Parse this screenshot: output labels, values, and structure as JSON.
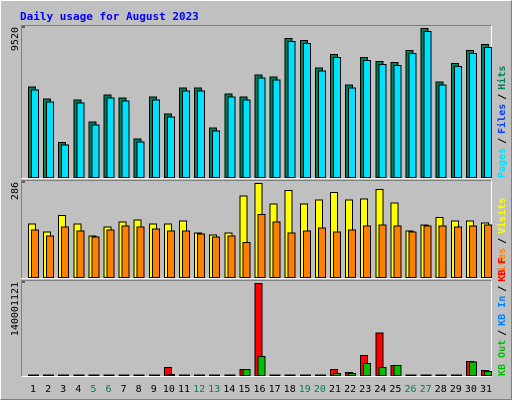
{
  "chart_data": {
    "type": "bar",
    "title": "Daily usage for August 2023",
    "categories": [
      "1",
      "2",
      "3",
      "4",
      "5",
      "6",
      "7",
      "8",
      "9",
      "10",
      "11",
      "12",
      "13",
      "14",
      "15",
      "16",
      "17",
      "18",
      "19",
      "20",
      "21",
      "22",
      "23",
      "24",
      "25",
      "26",
      "27",
      "28",
      "29",
      "30",
      "31"
    ],
    "weekend": [
      "5",
      "6",
      "12",
      "13",
      "19",
      "20",
      "26",
      "27"
    ],
    "weekend_color": "#00805c",
    "legend_separator": "/",
    "panels": [
      {
        "ylim": [
          0,
          9520
        ],
        "yticks": [
          9520
        ],
        "series": [
          {
            "name": "Hits",
            "color": "#00805c",
            "values": [
              5750,
              4984,
              2236,
              4920,
              3514,
              5239,
              5047,
              2428,
              5111,
              4025,
              5686,
              5686,
              3131,
              5303,
              5111,
              6517,
              6389,
              8817,
              8689,
              6964,
              7795,
              5878,
              7603,
              7347,
              7284,
              8050,
              9456,
              6070,
              7220,
              8050,
              8434
            ]
          },
          {
            "name": "Files",
            "color": "#0040ff",
            "values": [
              5500,
              4735,
              1990,
              4670,
              3265,
              4990,
              4800,
              2180,
              4860,
              3775,
              5435,
              5440,
              2880,
              5050,
              4860,
              6270,
              6140,
              8570,
              8440,
              6715,
              7545,
              5630,
              7350,
              7100,
              7035,
              7800,
              9205,
              5820,
              6970,
              7800,
              8185
            ]
          },
          {
            "name": "Pages",
            "color": "#00e0ff",
            "values": [
              5560,
              4795,
              2050,
              4730,
              3325,
              5050,
              4860,
              2240,
              4920,
              3835,
              5495,
              5500,
              2940,
              5110,
              4920,
              6330,
              6200,
              8630,
              8500,
              6775,
              7605,
              5690,
              7410,
              7160,
              7095,
              7860,
              9265,
              5880,
              7030,
              7860,
              8245
            ]
          }
        ]
      },
      {
        "ylim": [
          0,
          286
        ],
        "yticks": [
          286
        ],
        "series": [
          {
            "name": "Visits",
            "color": "#ffff00",
            "values": [
              161,
              137,
              186,
              161,
              125,
              152,
              167,
              173,
              161,
              161,
              170,
              134,
              128,
              134,
              246,
              283,
              222,
              262,
              222,
              234,
              256,
              234,
              237,
              265,
              225,
              140,
              158,
              180,
              170,
              170,
              164
            ]
          },
          {
            "name": "Sites",
            "color": "#ff8000",
            "values": [
              143,
              125,
              152,
              140,
              122,
              143,
              155,
              152,
              146,
              140,
              140,
              131,
              122,
              125,
              106,
              189,
              167,
              134,
              140,
              149,
              137,
              143,
              155,
              158,
              155,
              137,
              155,
              155,
              152,
              155,
              158
            ]
          }
        ]
      },
      {
        "ylim": [
          0,
          140001121
        ],
        "yticks": [
          140001121
        ],
        "series": [
          {
            "name": "KB F",
            "color": "#ff0000",
            "values": [
              900000,
              900000,
              700000,
              900000,
              600000,
              800000,
              800000,
              700000,
              900000,
              12200000,
              900000,
              800000,
              700000,
              900000,
              9100000,
              138500000,
              1000000,
              1100000,
              900000,
              900000,
              9100000,
              4600000,
              30400000,
              63900000,
              15200000,
              1000000,
              1000000,
              900000,
              1000000,
              21300000,
              7600000
            ]
          },
          {
            "name": "KB In",
            "color": "#0080ff",
            "values": [
              0,
              0,
              0,
              0,
              0,
              0,
              0,
              0,
              0,
              0,
              0,
              0,
              0,
              0,
              0,
              0,
              0,
              0,
              0,
              0,
              0,
              0,
              0,
              0,
              0,
              0,
              0,
              0,
              0,
              0,
              0
            ]
          },
          {
            "name": "KB Out",
            "color": "#00c000",
            "values": [
              400000,
              400000,
              400000,
              400000,
              400000,
              400000,
              400000,
              400000,
              400000,
              1500000,
              400000,
              400000,
              400000,
              400000,
              9100000,
              28900000,
              400000,
              400000,
              400000,
              400000,
              3000000,
              3000000,
              18000000,
              12000000,
              15000000,
              400000,
              400000,
              400000,
              400000,
              20000000,
              6000000
            ]
          }
        ]
      }
    ]
  }
}
